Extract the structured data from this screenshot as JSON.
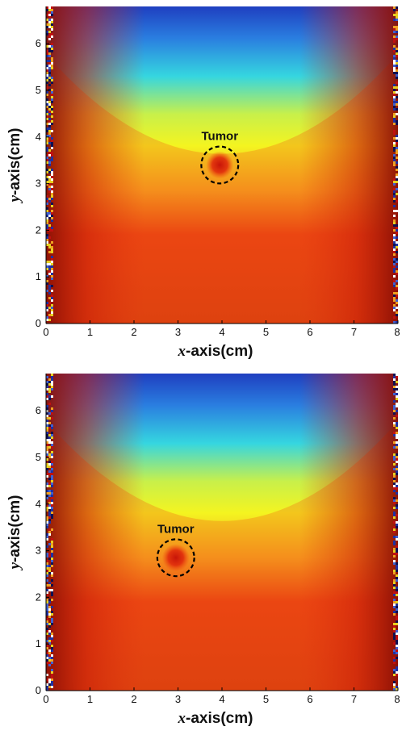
{
  "chart_data": [
    {
      "type": "heatmap",
      "xlabel_prefix": "x",
      "xlabel_rest": "-axis(cm)",
      "ylabel_prefix": "y",
      "ylabel_rest": "-axis(cm)",
      "xlim": [
        0,
        8
      ],
      "ylim": [
        0,
        6.8
      ],
      "xticks": [
        0,
        1,
        2,
        3,
        4,
        5,
        6,
        7,
        8
      ],
      "yticks": [
        0,
        1,
        2,
        3,
        4,
        5,
        6
      ],
      "colormap": "jet",
      "colors": {
        "low": "#1f3fc0",
        "mid": "#f4f420",
        "high": "#e83010",
        "max": "#8a0f05"
      },
      "annotation": {
        "text": "Tumor",
        "x": 3.95,
        "y": 3.4,
        "radius_cm": 0.42
      }
    },
    {
      "type": "heatmap",
      "xlabel_prefix": "x",
      "xlabel_rest": "-axis(cm)",
      "ylabel_prefix": "y",
      "ylabel_rest": "-axis(cm)",
      "xlim": [
        0,
        8
      ],
      "ylim": [
        0,
        6.8
      ],
      "xticks": [
        0,
        1,
        2,
        3,
        4,
        5,
        6,
        7,
        8
      ],
      "yticks": [
        0,
        1,
        2,
        3,
        4,
        5,
        6
      ],
      "colormap": "jet",
      "colors": {
        "low": "#1f3fc0",
        "mid": "#f4f420",
        "high": "#e83010",
        "max": "#8a0f05"
      },
      "annotation": {
        "text": "Tumor",
        "x": 2.95,
        "y": 2.85,
        "radius_cm": 0.42
      }
    }
  ]
}
